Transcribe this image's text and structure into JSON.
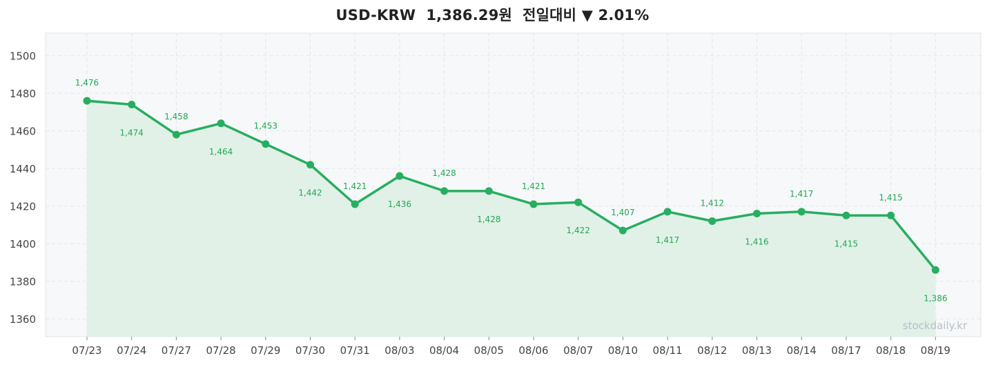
{
  "header": {
    "pair": "USD-KRW",
    "price": "1,386.29원",
    "change_label": "전일대비",
    "direction_icon": "down-triangle",
    "change_pct": "2.01%"
  },
  "watermark": "stockdaily.kr",
  "colors": {
    "line": "#27ae5f",
    "fill": "#dff0e6",
    "plot_bg": "#f6f8fa",
    "label": "#22a851"
  },
  "chart_data": {
    "type": "line",
    "categories": [
      "07/23",
      "07/24",
      "07/27",
      "07/28",
      "07/29",
      "07/30",
      "07/31",
      "08/03",
      "08/04",
      "08/05",
      "08/06",
      "08/07",
      "08/10",
      "08/11",
      "08/12",
      "08/13",
      "08/14",
      "08/17",
      "08/18",
      "08/19"
    ],
    "values": [
      1476,
      1474,
      1458,
      1464,
      1453,
      1442,
      1421,
      1436,
      1428,
      1428,
      1421,
      1422,
      1407,
      1417,
      1412,
      1416,
      1417,
      1415,
      1415,
      1386
    ],
    "data_labels": [
      "1,476",
      "1,474",
      "1,458",
      "1,464",
      "1,453",
      "1,442",
      "1,421",
      "1,436",
      "1,428",
      "1,428",
      "1,421",
      "1,422",
      "1,407",
      "1,417",
      "1,412",
      "1,416",
      "1,417",
      "1,415",
      "1,415",
      "1,386"
    ],
    "yticks": [
      1360,
      1380,
      1400,
      1420,
      1440,
      1460,
      1480,
      1500
    ],
    "ylim": [
      1350.5,
      1512
    ],
    "grid": true
  }
}
